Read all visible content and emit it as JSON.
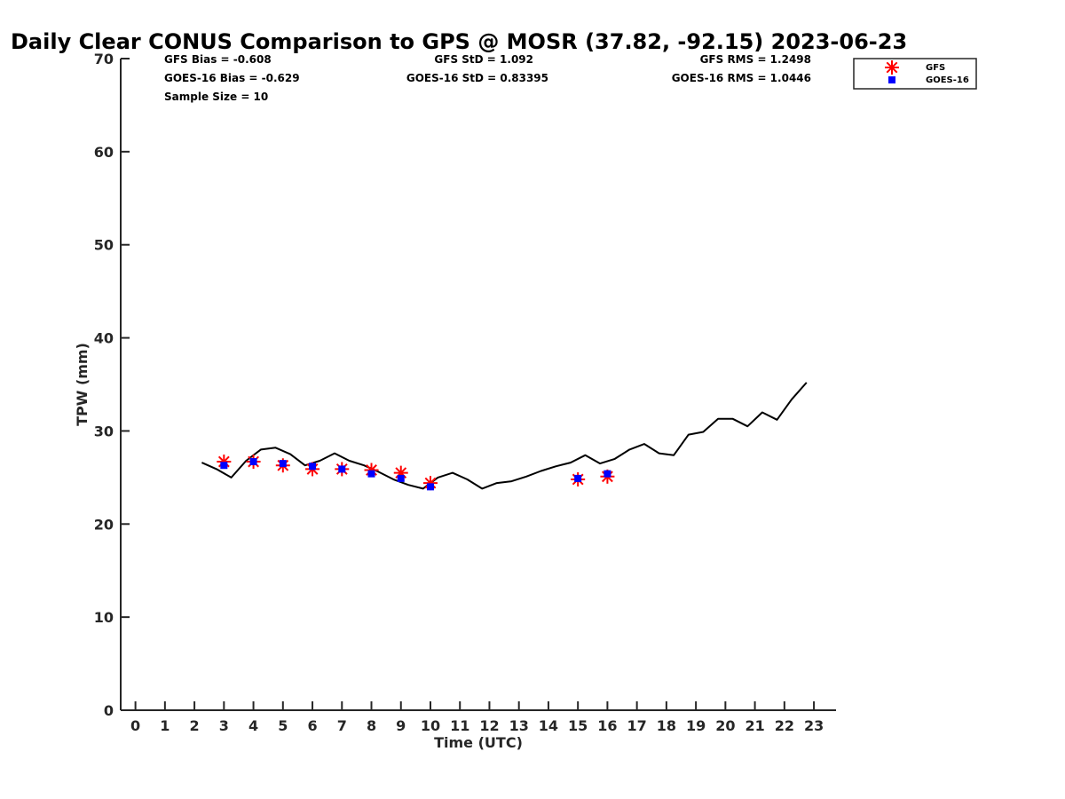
{
  "chart_data": {
    "type": "line",
    "title": "Daily Clear CONUS Comparison to GPS @ MOSR (37.82, -92.15) 2023-06-23",
    "xlabel": "Time (UTC)",
    "ylabel": "TPW (mm)",
    "xlim": [
      -0.5,
      23.75
    ],
    "ylim": [
      0,
      70
    ],
    "x_ticks": [
      0,
      1,
      2,
      3,
      4,
      5,
      6,
      7,
      8,
      9,
      10,
      11,
      12,
      13,
      14,
      15,
      16,
      17,
      18,
      19,
      20,
      21,
      22,
      23
    ],
    "y_ticks": [
      0,
      10,
      20,
      30,
      40,
      50,
      60,
      70
    ],
    "legend_position": "top-right",
    "legend": [
      "GFS",
      "GOES-16"
    ],
    "stats": {
      "gfs_bias": "GFS Bias = -0.608",
      "goes_bias": "GOES-16 Bias = -0.629",
      "sample_size": "Sample Size = 10",
      "gfs_std": "GFS StD = 1.092",
      "goes_std": "GOES-16 StD = 0.83395",
      "gfs_rms": "GFS RMS = 1.2498",
      "goes_rms": "GOES-16 RMS = 1.0446"
    },
    "series": [
      {
        "name": "GPS",
        "type": "line",
        "color": "#000000",
        "x": [
          2.25,
          2.75,
          3.25,
          3.75,
          4.25,
          4.75,
          5.25,
          5.75,
          6.25,
          6.75,
          7.25,
          7.75,
          8.25,
          8.75,
          9.25,
          9.75,
          10.25,
          10.75,
          11.25,
          11.75,
          12.25,
          12.75,
          13.25,
          13.75,
          14.25,
          14.75,
          15.25,
          15.75,
          16.25,
          16.75,
          17.25,
          17.75,
          18.25,
          18.75,
          19.25,
          19.75,
          20.25,
          20.75,
          21.25,
          21.75,
          22.25,
          22.75
        ],
        "y": [
          26.6,
          25.9,
          25.0,
          26.8,
          28.0,
          28.2,
          27.5,
          26.3,
          26.8,
          27.6,
          26.8,
          26.3,
          25.6,
          24.8,
          24.2,
          23.8,
          25.0,
          25.5,
          24.8,
          23.8,
          24.4,
          24.6,
          25.1,
          25.7,
          26.2,
          26.6,
          27.4,
          26.5,
          27.0,
          28.0,
          28.6,
          27.6,
          27.4,
          29.6,
          29.9,
          31.3,
          31.3,
          30.5,
          32.0,
          31.2,
          33.4,
          35.2
        ]
      },
      {
        "name": "GFS",
        "type": "scatter",
        "marker": "asterisk",
        "color": "#ff0000",
        "x": [
          3,
          4,
          5,
          6,
          7,
          8,
          9,
          10,
          15,
          16
        ],
        "y": [
          26.7,
          26.7,
          26.3,
          25.9,
          25.9,
          25.8,
          25.5,
          24.4,
          24.8,
          25.1
        ]
      },
      {
        "name": "GOES-16",
        "type": "scatter",
        "marker": "square",
        "color": "#0000ff",
        "x": [
          3,
          4,
          5,
          6,
          7,
          8,
          9,
          10,
          15,
          16
        ],
        "y": [
          26.3,
          26.7,
          26.5,
          26.2,
          25.9,
          25.4,
          24.9,
          24.0,
          24.9,
          25.4
        ]
      }
    ]
  }
}
